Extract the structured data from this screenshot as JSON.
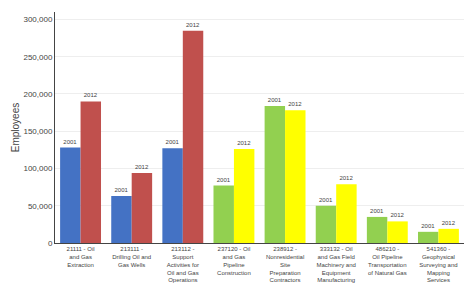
{
  "chart_data": {
    "type": "bar",
    "categories": [
      "21111 - Oil\nand Gas\nExtraction",
      "213111 -\nDrilling Oil and\nGas Wells",
      "213112 -\nSupport\nActivities for\nOil and Gas\nOperations",
      "237120 - Oil\nand Gas\nPipeline\nConstruction",
      "238912 -\nNonresidential\nSite\nPreparation\nContractors",
      "333132 - Oil\nand Gas Field\nMachinery and\nEquipment\nManufacturing",
      "486210 -\nOil Pipeline\nTransportation\nof Natural Gas",
      "541360 -\nGeophysical\nSurveying and\nMapping\nServices"
    ],
    "series": [
      {
        "name": "2001",
        "values": [
          128000,
          63000,
          127000,
          77000,
          184000,
          50000,
          35000,
          15000
        ],
        "colors": [
          "#4472c4",
          "#4472c4",
          "#4472c4",
          "#92d050",
          "#92d050",
          "#92d050",
          "#92d050",
          "#92d050"
        ]
      },
      {
        "name": "2012",
        "values": [
          190000,
          94000,
          285000,
          126000,
          178000,
          79000,
          29000,
          19000
        ],
        "colors": [
          "#c0504d",
          "#c0504d",
          "#c0504d",
          "#ffff00",
          "#ffff00",
          "#ffff00",
          "#ffff00",
          "#ffff00"
        ]
      }
    ],
    "ylabel": "Employees",
    "ylim": [
      0,
      310000
    ],
    "yticks": [
      0,
      {
        "value": 50000,
        "label": "50,000"
      },
      {
        "value": 100000,
        "label": "100,000"
      },
      {
        "value": 150000,
        "label": "150,000"
      },
      {
        "value": 200000,
        "label": "200,000"
      },
      {
        "value": 250000,
        "label": "250,000"
      },
      {
        "value": 300000,
        "label": "300,000"
      }
    ],
    "grid": true
  }
}
